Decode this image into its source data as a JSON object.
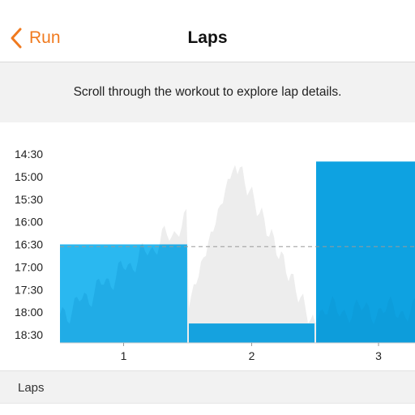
{
  "nav": {
    "back_label": "Run",
    "title": "Laps",
    "accent_color": "#f07a1f",
    "back_icon": "chevron-left-icon"
  },
  "hint": {
    "text": "Scroll through the workout to explore lap details."
  },
  "chart_data": {
    "type": "bar",
    "title": "",
    "xlabel": "",
    "ylabel": "",
    "y_axis_reversed": true,
    "ylim": [
      "14:30",
      "18:30"
    ],
    "y_ticks": [
      "14:30",
      "15:00",
      "15:30",
      "16:00",
      "16:30",
      "17:00",
      "17:30",
      "18:00",
      "18:30"
    ],
    "categories": [
      "1",
      "2",
      "3"
    ],
    "values": [
      "16:30",
      "18:15",
      "14:40"
    ],
    "reference_line": "16:33",
    "grid": false,
    "legend": "none",
    "colors": {
      "lap_selected": "#2ab8f0",
      "lap_1": "#2ab8f0",
      "lap_2": "#1aa9e6",
      "lap_3": "#0ea2e1",
      "pace_trace": "#ededed",
      "reference_line": "#999999"
    }
  },
  "section": {
    "label": "Laps"
  }
}
